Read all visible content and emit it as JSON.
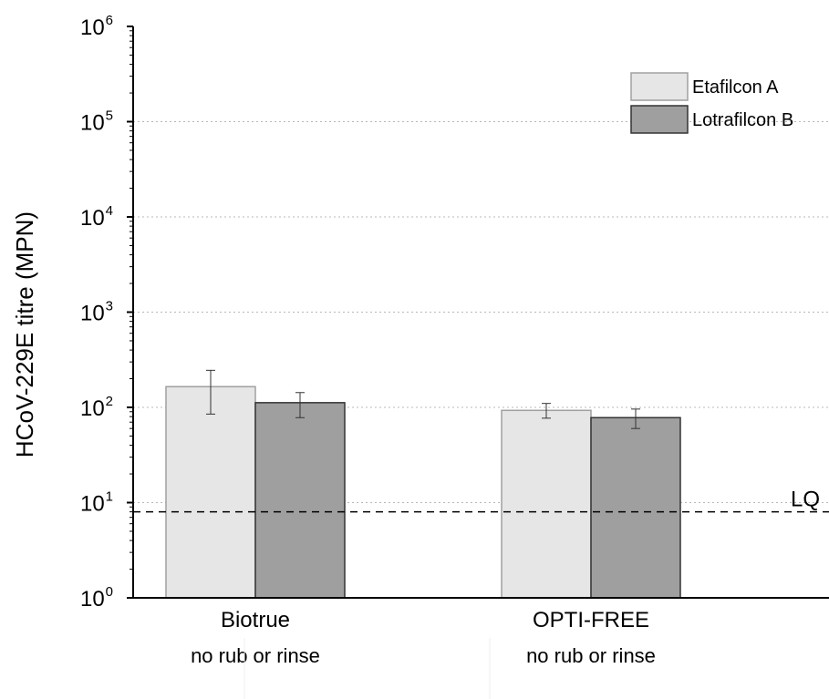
{
  "chart_data": {
    "type": "bar",
    "ylabel": "HCoV-229E titre (MPN)",
    "yscale": "log",
    "ylim": [
      1,
      1000000
    ],
    "yticks": [
      {
        "base": "10",
        "exp": "0",
        "value": 1
      },
      {
        "base": "10",
        "exp": "1",
        "value": 10
      },
      {
        "base": "10",
        "exp": "2",
        "value": 100
      },
      {
        "base": "10",
        "exp": "3",
        "value": 1000
      },
      {
        "base": "10",
        "exp": "4",
        "value": 10000
      },
      {
        "base": "10",
        "exp": "5",
        "value": 100000
      },
      {
        "base": "10",
        "exp": "6",
        "value": 1000000
      }
    ],
    "grid": "horizontal dotted",
    "legend_position": "top-right",
    "categories": [
      {
        "label": "Biotrue",
        "sublabel": "no rub or rinse"
      },
      {
        "label": "OPTI-FREE",
        "sublabel": "no rub or rinse"
      }
    ],
    "series": [
      {
        "name": "Etafilcon A",
        "color": "#e6e6e6",
        "edge": "#a0a0a0",
        "values": [
          165,
          93
        ],
        "err_low": [
          85,
          77
        ],
        "err_high": [
          245,
          110
        ]
      },
      {
        "name": "Lotrafilcon B",
        "color": "#9f9f9f",
        "edge": "#333333",
        "values": [
          112,
          78
        ],
        "err_low": [
          78,
          60
        ],
        "err_high": [
          143,
          96
        ]
      }
    ],
    "reference_line": {
      "label": "LQ",
      "value": 8,
      "style": "dashed"
    }
  }
}
